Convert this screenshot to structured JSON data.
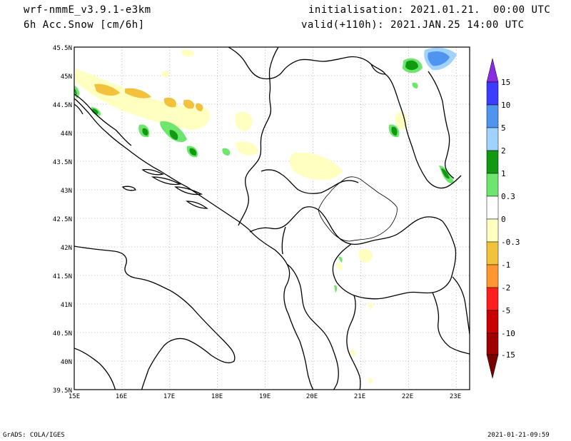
{
  "header": {
    "model": "wrf-nmmE_v3.9.1-e3km",
    "field": "6h Acc.Snow [cm/6h]",
    "init": "initialisation: 2021.01.21.  00:00 UTC",
    "valid": "valid(+110h): 2021.JAN.25 14:00 UTC"
  },
  "axes": {
    "lat_labels": [
      "45.5N",
      "45N",
      "44.5N",
      "44N",
      "43.5N",
      "43N",
      "42.5N",
      "42N",
      "41.5N",
      "41N",
      "40.5N",
      "40N",
      "39.5N"
    ],
    "lon_labels": [
      "15E",
      "16E",
      "17E",
      "18E",
      "19E",
      "20E",
      "21E",
      "22E",
      "23E"
    ]
  },
  "colorbar": {
    "labels": [
      "15",
      "10",
      "5",
      "2",
      "1",
      "0.3",
      "0",
      "-0.3",
      "-1",
      "-2",
      "-5",
      "-10",
      "-15"
    ],
    "colors": [
      "#8a2be2",
      "#3c3cff",
      "#4f94ee",
      "#a0d2ff",
      "#119a11",
      "#6ee66e",
      "#ffffff",
      "#ffffc0",
      "#f2c23c",
      "#ff9632",
      "#ff1e1e",
      "#c80000",
      "#a00000",
      "#7a0000"
    ]
  },
  "footer": {
    "left": "GrADS: COLA/IGES",
    "right": "2021-01-21-09:59"
  }
}
